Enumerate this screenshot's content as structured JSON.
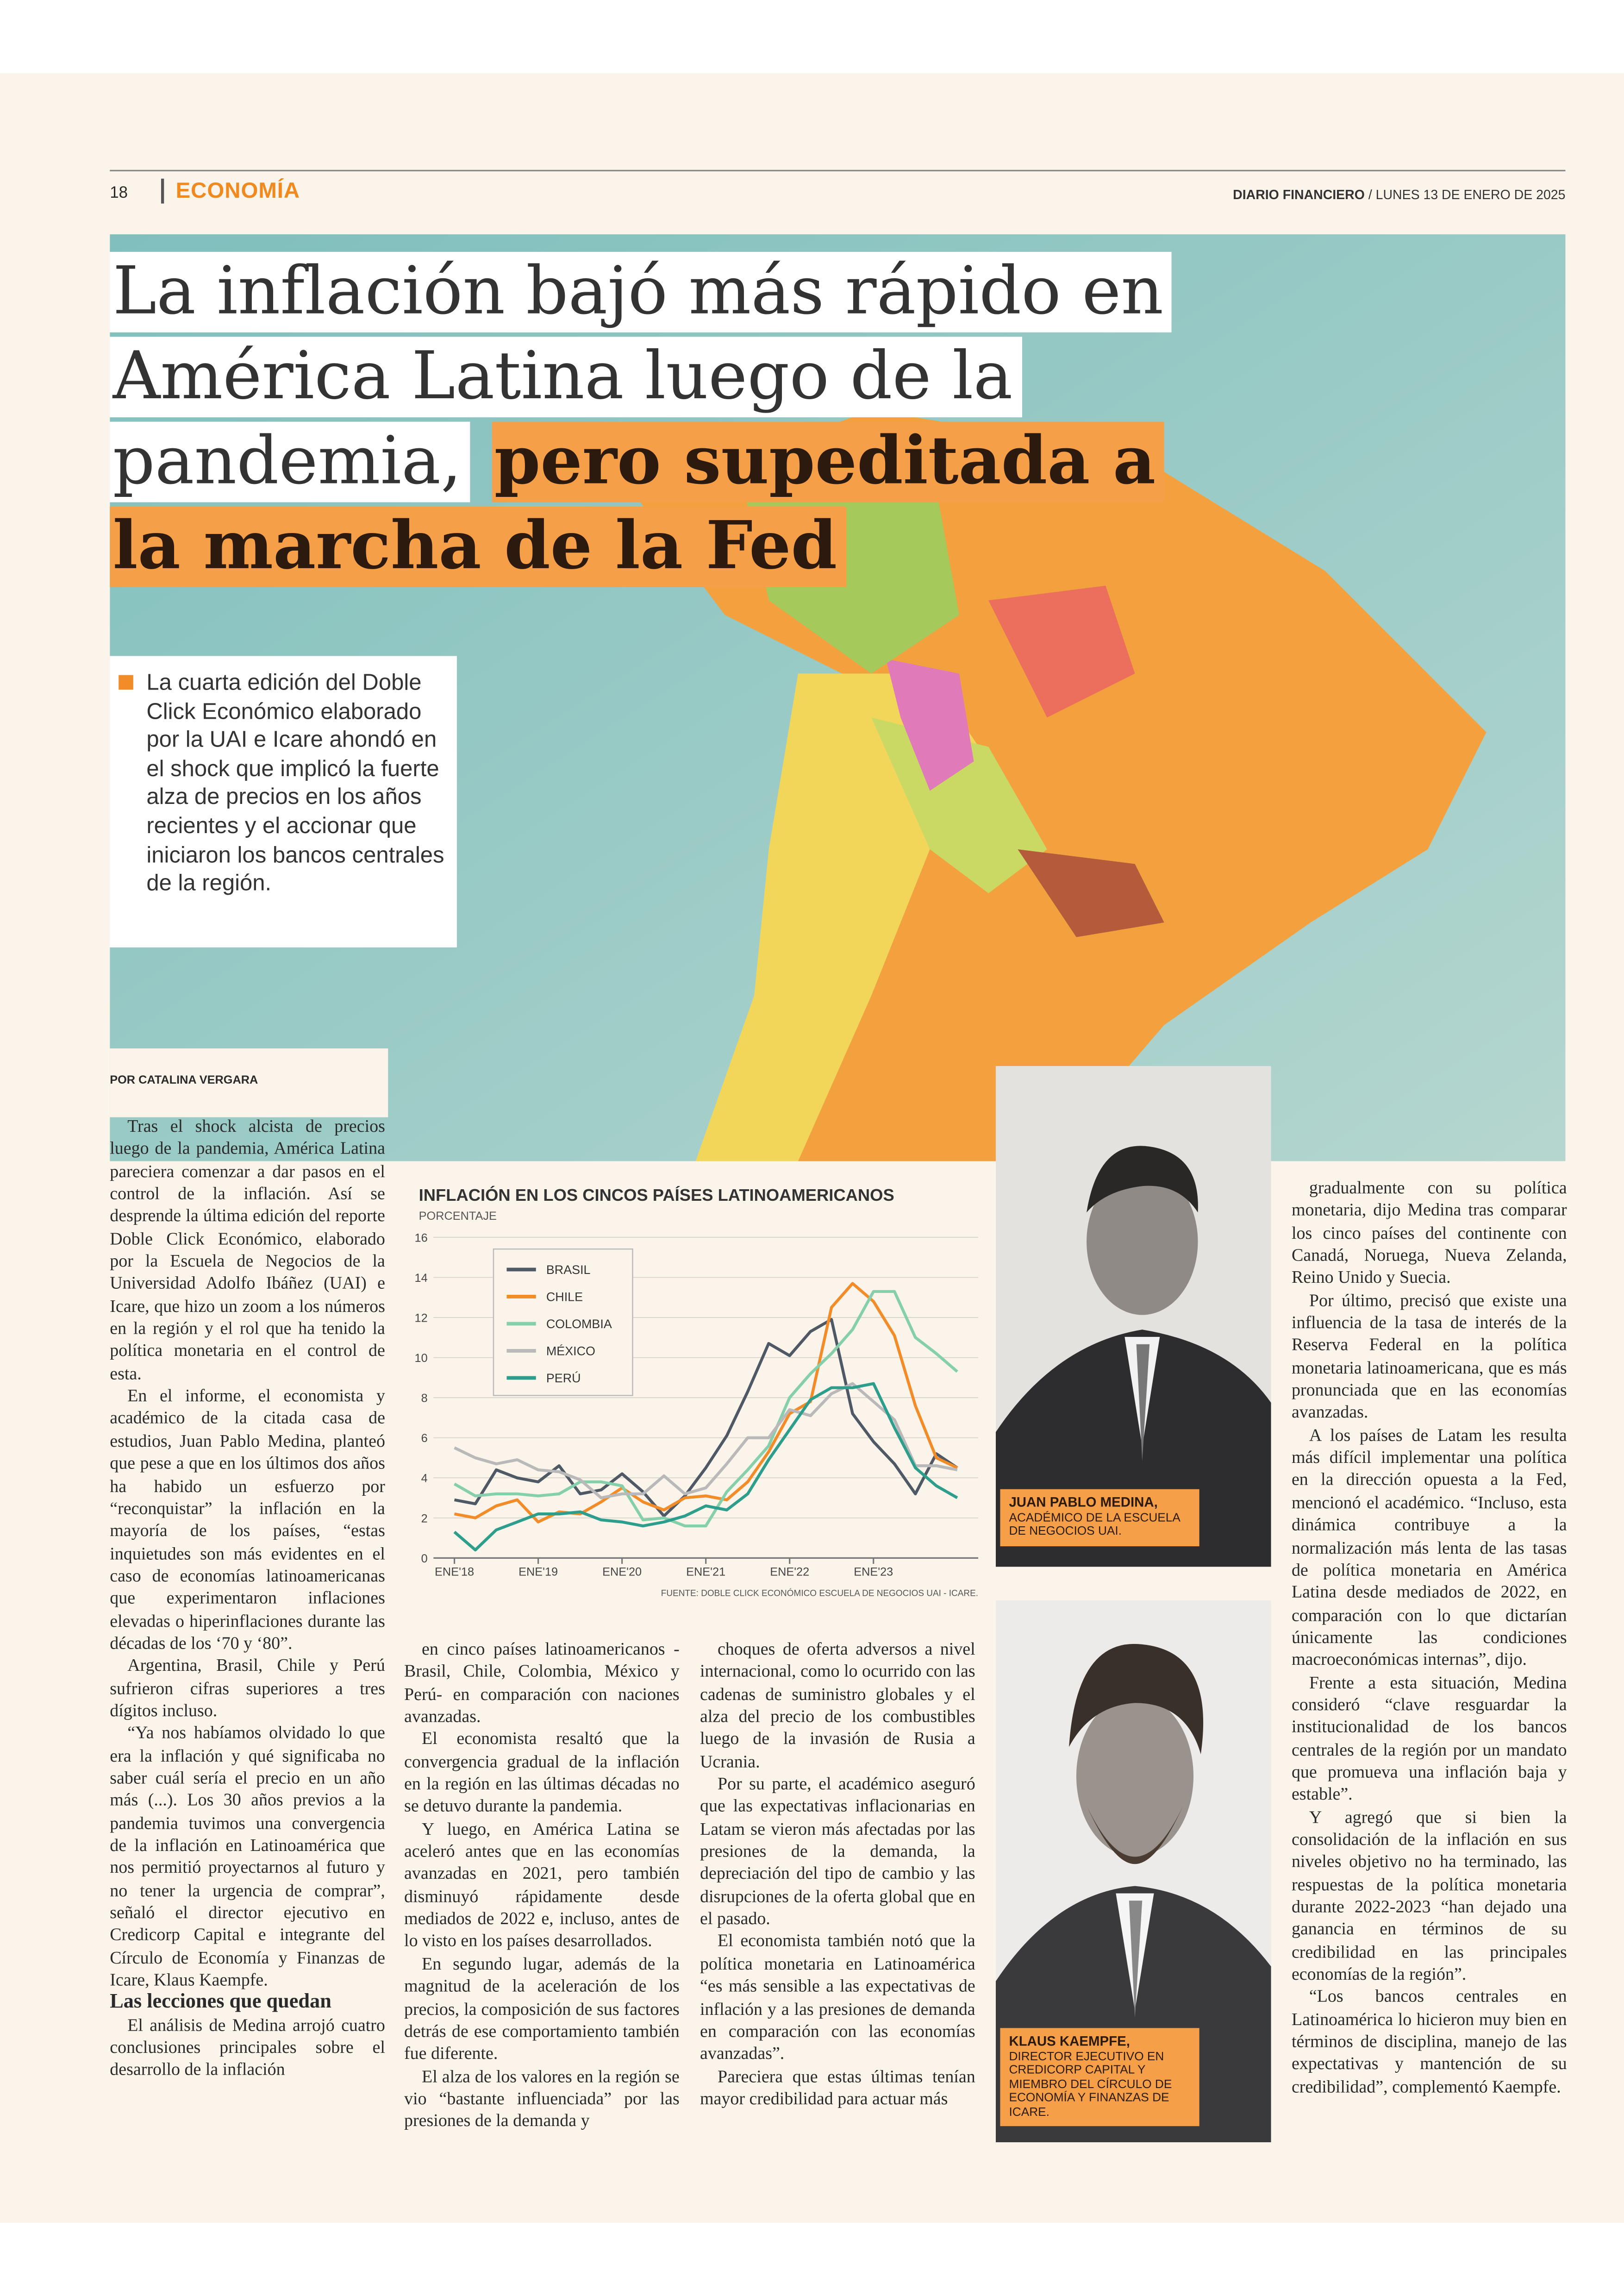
{
  "header": {
    "page_number": "18",
    "section": "ECONOMÍA",
    "newspaper": "DIARIO FINANCIERO",
    "date": "/ LUNES 13 DE ENERO DE 2025"
  },
  "headline": {
    "plain": "La inflación bajó más rápido en América Latina luego de la pandemia,",
    "highlight": "pero supeditada a la marcha de la Fed"
  },
  "lead": "La cuarta edición del Doble Click Económico elaborado por la UAI e Icare ahondó en el shock que implicó la fuerte alza de precios en los años recientes y el accionar que iniciaron los bancos centrales de la región.",
  "byline": "POR CATALINA VERGARA",
  "article": {
    "col1_a": [
      "Tras el shock alcista de precios luego de la pandemia, América Latina pareciera comenzar a dar pasos en el control de la inflación. Así se desprende la última edición del reporte Doble Click Económico, elaborado por la Escuela de Negocios de la Universidad Adolfo Ibáñez (UAI) e Icare, que hizo un zoom a los números en la región y el rol que ha tenido la política monetaria en el control de esta.",
      "En el informe, el economista y académico de la citada casa de estudios, Juan Pablo Medina, planteó que pese a que en los últimos dos años ha habido un esfuerzo por “reconquistar” la inflación en la mayoría de los países, “estas inquietudes son más evidentes en el caso de economías latinoamericanas que experimentaron inflaciones elevadas o hiperinflaciones durante las décadas de los ‘70 y ‘80”.",
      "Argentina, Brasil, Chile y Perú sufrieron cifras superiores a tres dígitos incluso.",
      "“Ya nos habíamos olvidado lo que era la inflación y qué significaba no saber cuál sería el precio en un año más (...). Los 30 años previos a la pandemia tuvimos una convergencia de la inflación en Latinoamérica que nos permitió proyectarnos al futuro y no tener la urgencia de comprar”, señaló el director ejecutivo en Credicorp Capital e integrante del Círculo de Economía y Finanzas de Icare, Klaus Kaempfe."
    ],
    "subheading": "Las lecciones que quedan",
    "col1_b": [
      "El análisis de Medina arrojó cuatro conclusiones principales sobre el desarrollo de la inflación"
    ],
    "col2": [
      "en cinco países latinoamericanos -Brasil, Chile, Colombia, México y Perú- en comparación con naciones avanzadas.",
      "El economista resaltó que la convergencia gradual de la inflación en la región en las últimas décadas no se detuvo durante la pandemia.",
      "Y luego, en América Latina se aceleró antes que en las economías avanzadas en 2021, pero también disminuyó rápidamente desde mediados de 2022 e, incluso, antes de lo visto en los países desarrollados.",
      "En segundo lugar, además de la magnitud de la aceleración de los precios, la composición de sus factores detrás de ese comportamiento también fue diferente.",
      "El alza de los valores en la región se vio “bastante influenciada” por las presiones de la demanda y"
    ],
    "col3": [
      "choques de oferta adversos a nivel internacional, como lo ocurrido con las cadenas de suministro globales y el alza del precio de los combustibles luego de la invasión de Rusia a Ucrania.",
      "Por su parte, el académico aseguró que las expectativas inflacionarias en Latam se vieron más afectadas por las presiones de la demanda, la depreciación del tipo de cambio y las disrupciones de la oferta global que en el pasado.",
      "El economista también notó que la política monetaria en Latinoamérica “es más sensible a las expectativas de inflación y a las presiones de demanda en comparación con las economías avanzadas”.",
      "Pareciera que estas últimas tenían mayor credibilidad para actuar más"
    ],
    "col4": [
      "gradualmente con su política monetaria, dijo Medina tras comparar los cinco países del continente con Canadá, Noruega, Nueva Zelanda, Reino Unido y Suecia.",
      "Por último, precisó que existe una influencia de la tasa de interés de la Reserva Federal en la política monetaria latinoamericana, que es más pronunciada que en las economías avanzadas.",
      "A los países de Latam les resulta más difícil implementar una política en la dirección opuesta a la Fed, mencionó el académico. “Incluso, esta dinámica contribuye a la normalización más lenta de las tasas de política monetaria en América Latina desde mediados de 2022, en comparación con lo que dictarían únicamente las condiciones macroeconómicas internas”, dijo.",
      "Frente a esta situación, Medina consideró “clave resguardar la institucionalidad de los bancos centrales de la región por un mandato que promueva una inflación baja y estable”.",
      "Y agregó que si bien la consolidación de la inflación en sus niveles objetivo no ha terminado, las respuestas de la política monetaria durante 2022-2023 “han dejado una ganancia en términos de su credibilidad en las principales economías de la región”.",
      "“Los bancos centrales en Latinoamérica lo hicieron muy bien en términos de disciplina, manejo de las expectativas y mantención de su credibilidad”, complementó Kaempfe."
    ]
  },
  "photos": [
    {
      "name": "JUAN PABLO MEDINA,",
      "role": "ACADÉMICO DE LA ESCUELA DE NEGOCIOS UAI."
    },
    {
      "name": "KLAUS KAEMPFE,",
      "role": "DIRECTOR EJECUTIVO EN CREDICORP CAPITAL Y MIEMBRO DEL CÍRCULO DE ECONOMÍA Y FINANZAS DE ICARE."
    }
  ],
  "chart_data": {
    "type": "line",
    "title": "INFLACIÓN EN LOS CINCOS PAÍSES LATINOAMERICANOS",
    "subtitle": "PORCENTAJE",
    "source": "FUENTE: DOBLE CLICK ECONÓMICO ESCUELA DE NEGOCIOS UAI - ICARE.",
    "x": [
      0,
      3,
      6,
      9,
      12,
      15,
      18,
      21,
      24,
      27,
      30,
      33,
      36,
      39,
      42,
      45,
      48,
      51,
      54,
      57,
      60,
      63,
      66,
      69,
      72
    ],
    "xlim": [
      -3,
      75
    ],
    "xticks": [
      {
        "value": 0,
        "label": "ENE'18"
      },
      {
        "value": 12,
        "label": "ENE'19"
      },
      {
        "value": 24,
        "label": "ENE'20"
      },
      {
        "value": 36,
        "label": "ENE'21"
      },
      {
        "value": 48,
        "label": "ENE'22"
      },
      {
        "value": 60,
        "label": "ENE'23"
      }
    ],
    "ylim": [
      0,
      16
    ],
    "yticks": [
      0,
      2,
      4,
      6,
      8,
      10,
      12,
      14,
      16
    ],
    "grid": true,
    "series": [
      {
        "name": "BRASIL",
        "color": "#4f5966",
        "values": [
          2.9,
          2.7,
          4.4,
          4.0,
          3.8,
          4.6,
          3.2,
          3.4,
          4.2,
          3.3,
          2.1,
          3.1,
          4.5,
          6.1,
          8.3,
          10.7,
          10.1,
          11.3,
          11.9,
          7.2,
          5.8,
          4.7,
          3.2,
          5.2,
          4.5
        ]
      },
      {
        "name": "CHILE",
        "color": "#f28c28",
        "values": [
          2.2,
          2.0,
          2.6,
          2.9,
          1.8,
          2.3,
          2.2,
          2.8,
          3.5,
          2.8,
          2.4,
          3.0,
          3.1,
          2.9,
          3.8,
          5.3,
          7.2,
          7.8,
          12.5,
          13.7,
          12.8,
          11.1,
          7.6,
          5.0,
          4.5
        ]
      },
      {
        "name": "COLOMBIA",
        "color": "#86cfac",
        "values": [
          3.7,
          3.1,
          3.2,
          3.2,
          3.1,
          3.2,
          3.8,
          3.8,
          3.6,
          1.9,
          2.0,
          1.6,
          1.6,
          3.3,
          4.4,
          5.6,
          8.0,
          9.2,
          10.2,
          11.4,
          13.3,
          13.3,
          11.0,
          10.2,
          9.3
        ]
      },
      {
        "name": "MÉXICO",
        "color": "#b9b9b9",
        "values": [
          5.5,
          5.0,
          4.7,
          4.9,
          4.4,
          4.3,
          3.9,
          3.0,
          3.2,
          3.2,
          4.1,
          3.2,
          3.5,
          4.7,
          6.0,
          6.0,
          7.4,
          7.1,
          8.2,
          8.7,
          7.8,
          6.9,
          4.6,
          4.6,
          4.4
        ]
      },
      {
        "name": "PERÚ",
        "color": "#2e9e8c",
        "values": [
          1.3,
          0.4,
          1.4,
          1.8,
          2.2,
          2.2,
          2.3,
          1.9,
          1.8,
          1.6,
          1.8,
          2.1,
          2.6,
          2.4,
          3.2,
          4.9,
          6.4,
          7.9,
          8.5,
          8.5,
          8.7,
          6.5,
          4.5,
          3.6,
          3.0
        ]
      }
    ]
  }
}
